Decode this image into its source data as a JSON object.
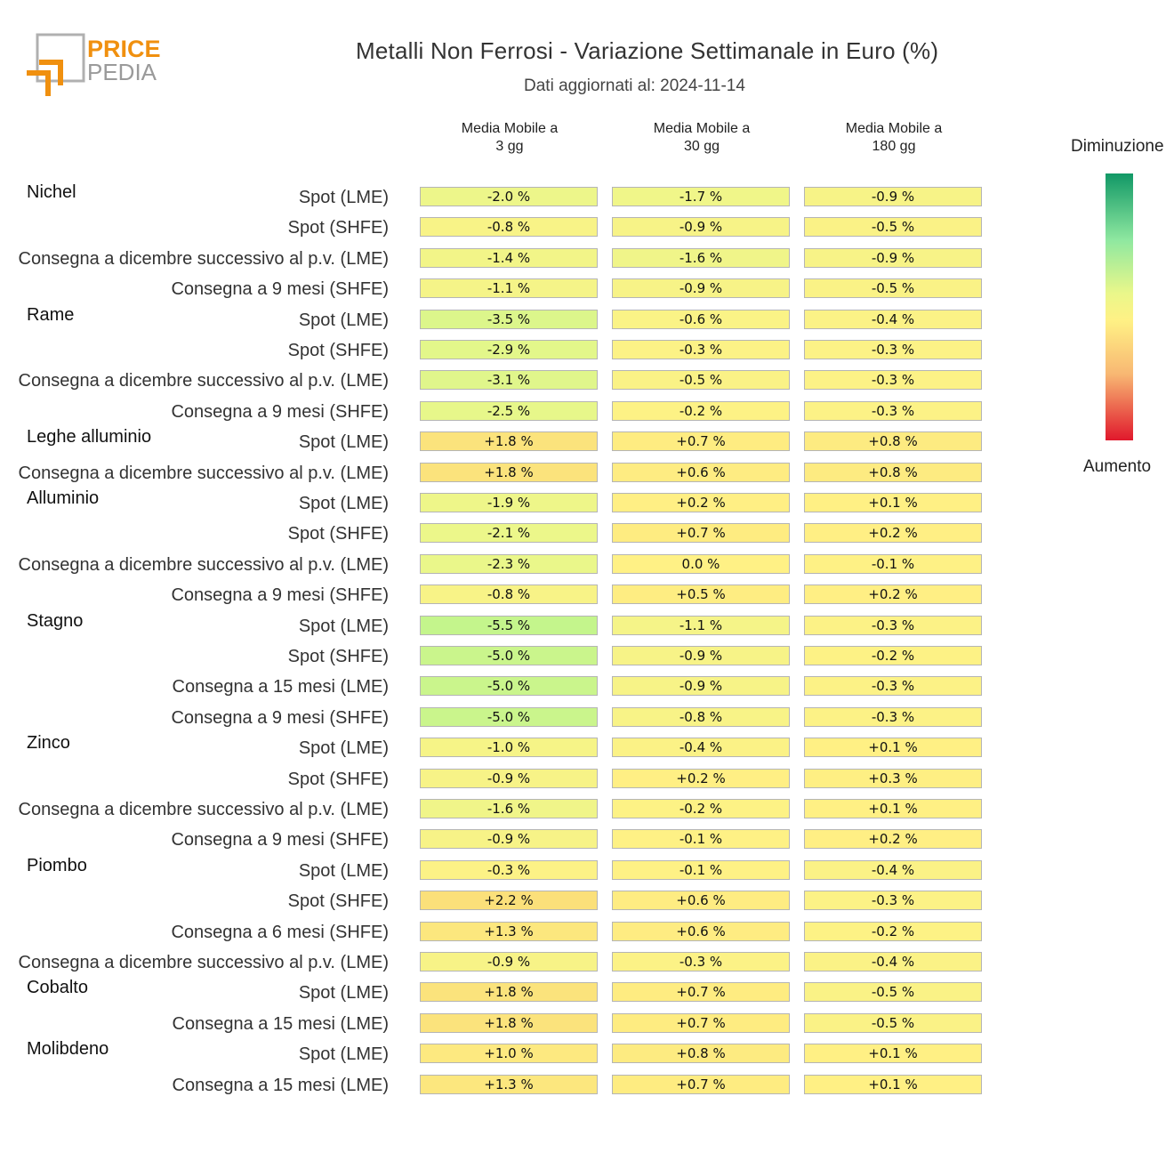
{
  "title": "Metalli Non Ferrosi - Variazione Settimanale in Euro (%)",
  "subtitle": "Dati aggiornati al: 2024-11-14",
  "logo": {
    "line1": "PRICE",
    "line2": "PEDIA"
  },
  "legend": {
    "top": "Diminuzione",
    "bottom": "Aumento"
  },
  "colors": {
    "decrease_strong": "#119866",
    "neutral": "#fff185",
    "increase_strong": "#e0182c",
    "logo_orange": "#f0900f",
    "logo_gray": "#9a9a9a"
  },
  "chart_data": {
    "type": "heatmap",
    "columns": [
      "Media Mobile a 3 gg",
      "Media Mobile a 30 gg",
      "Media Mobile a 180 gg"
    ],
    "column_lines": [
      [
        "Media Mobile a",
        "3 gg"
      ],
      [
        "Media Mobile a",
        "30 gg"
      ],
      [
        "Media Mobile a",
        "180 gg"
      ]
    ],
    "unit": "%",
    "groups": [
      {
        "name": "Nichel",
        "rows": [
          {
            "label": "Spot (LME)",
            "values": [
              -2.0,
              -1.7,
              -0.9
            ]
          },
          {
            "label": "Spot (SHFE)",
            "values": [
              -0.8,
              -0.9,
              -0.5
            ]
          },
          {
            "label": "Consegna a dicembre successivo al p.v. (LME)",
            "values": [
              -1.4,
              -1.6,
              -0.9
            ]
          },
          {
            "label": "Consegna a 9 mesi (SHFE)",
            "values": [
              -1.1,
              -0.9,
              -0.5
            ]
          }
        ]
      },
      {
        "name": "Rame",
        "rows": [
          {
            "label": "Spot (LME)",
            "values": [
              -3.5,
              -0.6,
              -0.4
            ]
          },
          {
            "label": "Spot (SHFE)",
            "values": [
              -2.9,
              -0.3,
              -0.3
            ]
          },
          {
            "label": "Consegna a dicembre successivo al p.v. (LME)",
            "values": [
              -3.1,
              -0.5,
              -0.3
            ]
          },
          {
            "label": "Consegna a 9 mesi (SHFE)",
            "values": [
              -2.5,
              -0.2,
              -0.3
            ]
          }
        ]
      },
      {
        "name": "Leghe alluminio",
        "rows": [
          {
            "label": "Spot (LME)",
            "values": [
              1.8,
              0.7,
              0.8
            ]
          },
          {
            "label": "Consegna a dicembre successivo al p.v. (LME)",
            "values": [
              1.8,
              0.6,
              0.8
            ]
          }
        ]
      },
      {
        "name": "Alluminio",
        "rows": [
          {
            "label": "Spot (LME)",
            "values": [
              -1.9,
              0.2,
              0.1
            ]
          },
          {
            "label": "Spot (SHFE)",
            "values": [
              -2.1,
              0.7,
              0.2
            ]
          },
          {
            "label": "Consegna a dicembre successivo al p.v. (LME)",
            "values": [
              -2.3,
              0.0,
              -0.1
            ]
          },
          {
            "label": "Consegna a 9 mesi (SHFE)",
            "values": [
              -0.8,
              0.5,
              0.2
            ]
          }
        ]
      },
      {
        "name": "Stagno",
        "rows": [
          {
            "label": "Spot (LME)",
            "values": [
              -5.5,
              -1.1,
              -0.3
            ]
          },
          {
            "label": "Spot (SHFE)",
            "values": [
              -5.0,
              -0.9,
              -0.2
            ]
          },
          {
            "label": "Consegna a 15 mesi (LME)",
            "values": [
              -5.0,
              -0.9,
              -0.3
            ]
          },
          {
            "label": "Consegna a 9 mesi (SHFE)",
            "values": [
              -5.0,
              -0.8,
              -0.3
            ]
          }
        ]
      },
      {
        "name": "Zinco",
        "rows": [
          {
            "label": "Spot (LME)",
            "values": [
              -1.0,
              -0.4,
              0.1
            ]
          },
          {
            "label": "Spot (SHFE)",
            "values": [
              -0.9,
              0.2,
              0.3
            ]
          },
          {
            "label": "Consegna a dicembre successivo al p.v. (LME)",
            "values": [
              -1.6,
              -0.2,
              0.1
            ]
          },
          {
            "label": "Consegna a 9 mesi (SHFE)",
            "values": [
              -0.9,
              -0.1,
              0.2
            ]
          }
        ]
      },
      {
        "name": "Piombo",
        "rows": [
          {
            "label": "Spot (LME)",
            "values": [
              -0.3,
              -0.1,
              -0.4
            ]
          },
          {
            "label": "Spot (SHFE)",
            "values": [
              2.2,
              0.6,
              -0.3
            ]
          },
          {
            "label": "Consegna a 6 mesi (SHFE)",
            "values": [
              1.3,
              0.6,
              -0.2
            ]
          },
          {
            "label": "Consegna a dicembre successivo al p.v. (LME)",
            "values": [
              -0.9,
              -0.3,
              -0.4
            ]
          }
        ]
      },
      {
        "name": "Cobalto",
        "rows": [
          {
            "label": "Spot (LME)",
            "values": [
              1.8,
              0.7,
              -0.5
            ]
          },
          {
            "label": "Consegna a 15 mesi (LME)",
            "values": [
              1.8,
              0.7,
              -0.5
            ]
          }
        ]
      },
      {
        "name": "Molibdeno",
        "rows": [
          {
            "label": "Spot (LME)",
            "values": [
              1.0,
              0.8,
              0.1
            ]
          },
          {
            "label": "Consegna a 15 mesi (LME)",
            "values": [
              1.3,
              0.7,
              0.1
            ]
          }
        ]
      }
    ]
  }
}
